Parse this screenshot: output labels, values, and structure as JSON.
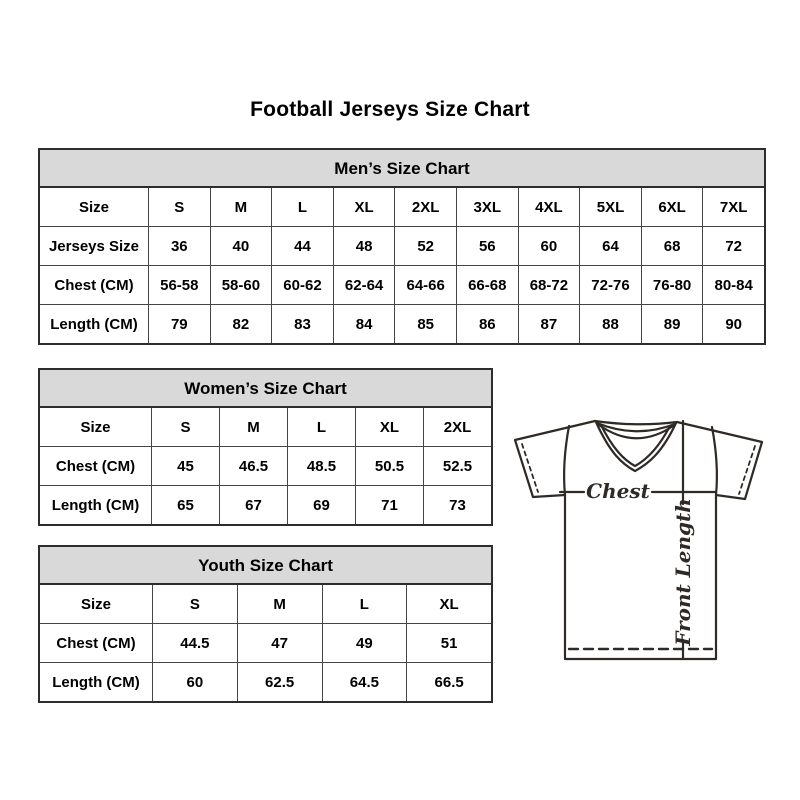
{
  "page": {
    "title": "Football Jerseys Size Chart"
  },
  "colors": {
    "header_bg": "#d9d9d9",
    "border_color": "#2d2d2d",
    "grid_line": "#454545",
    "text_color": "#000000",
    "diagram_stroke": "#2f2a25"
  },
  "tables": [
    {
      "id": "mens",
      "title": "Men’s Size Chart",
      "rows": [
        {
          "label": "Size",
          "values": [
            "S",
            "M",
            "L",
            "XL",
            "2XL",
            "3XL",
            "4XL",
            "5XL",
            "6XL",
            "7XL"
          ]
        },
        {
          "label": "Jerseys Size",
          "values": [
            "36",
            "40",
            "44",
            "48",
            "52",
            "56",
            "60",
            "64",
            "68",
            "72"
          ]
        },
        {
          "label": "Chest (CM)",
          "values": [
            "56-58",
            "58-60",
            "60-62",
            "62-64",
            "64-66",
            "66-68",
            "68-72",
            "72-76",
            "76-80",
            "80-84"
          ]
        },
        {
          "label": "Length (CM)",
          "values": [
            "79",
            "82",
            "83",
            "84",
            "85",
            "86",
            "87",
            "88",
            "89",
            "90"
          ]
        }
      ]
    },
    {
      "id": "womens",
      "title": "Women’s Size Chart",
      "rows": [
        {
          "label": "Size",
          "values": [
            "S",
            "M",
            "L",
            "XL",
            "2XL"
          ]
        },
        {
          "label": "Chest (CM)",
          "values": [
            "45",
            "46.5",
            "48.5",
            "50.5",
            "52.5"
          ]
        },
        {
          "label": "Length (CM)",
          "values": [
            "65",
            "67",
            "69",
            "71",
            "73"
          ]
        }
      ]
    },
    {
      "id": "youth",
      "title": "Youth Size Chart",
      "rows": [
        {
          "label": "Size",
          "values": [
            "S",
            "M",
            "L",
            "XL"
          ]
        },
        {
          "label": "Chest (CM)",
          "values": [
            "44.5",
            "47",
            "49",
            "51"
          ]
        },
        {
          "label": "Length (CM)",
          "values": [
            "60",
            "62.5",
            "64.5",
            "66.5"
          ]
        }
      ]
    }
  ],
  "diagram": {
    "chest_label": "Chest",
    "front_length_label": "Front Length"
  }
}
